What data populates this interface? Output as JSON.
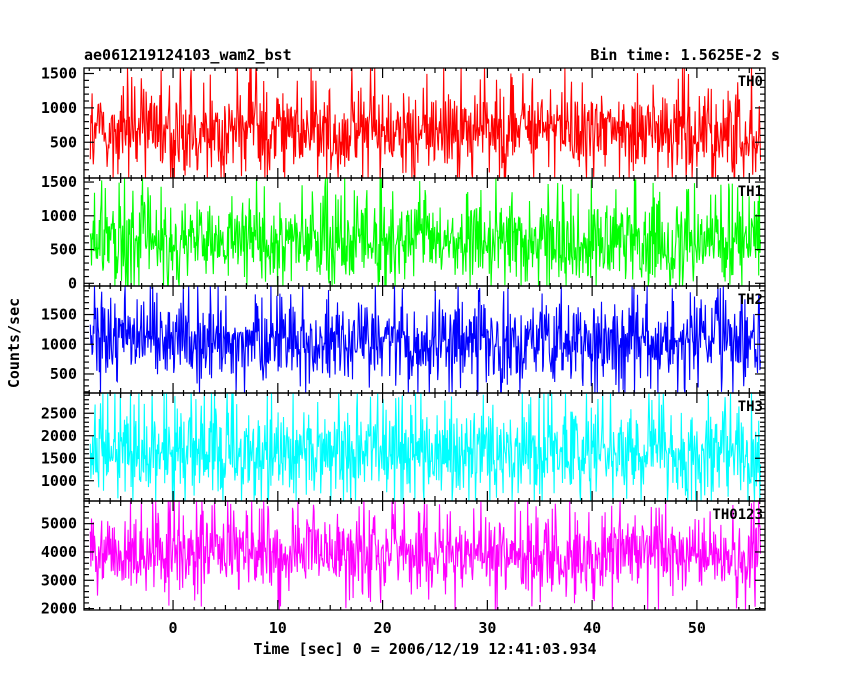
{
  "chart_data": {
    "type": "line",
    "title": "ae061219124103_wam2_bst",
    "subtitle": "Bin time: 1.5625E-2 s",
    "xlabel": "Time [sec] 0 = 2006/12/19 12:41:03.934",
    "ylabel": "Counts/sec",
    "xlim": [
      -8.5,
      56.5
    ],
    "data_x_range": [
      -7.9,
      56.1
    ],
    "bin_time_s": 0.015625,
    "x_ticks_major": [
      0,
      10,
      20,
      30,
      40,
      50
    ],
    "x_tick_labels": [
      "0",
      "10",
      "20",
      "30",
      "40",
      "50"
    ],
    "grid": false,
    "panels": [
      {
        "name": "TH0",
        "color": "#ff0000",
        "ylim": [
          -20,
          1580
        ],
        "y_ticks": [
          500,
          1000,
          1500
        ],
        "y_tick_labels": [
          "500",
          "1000",
          "1500"
        ],
        "typical_range": [
          280,
          1400
        ],
        "mean": 670
      },
      {
        "name": "TH1",
        "color": "#00ff00",
        "ylim": [
          -40,
          1560
        ],
        "y_ticks": [
          0,
          500,
          1000,
          1500
        ],
        "y_tick_labels": [
          "0",
          "500",
          "1000",
          "1500"
        ],
        "typical_range": [
          120,
          1350
        ],
        "mean": 620
      },
      {
        "name": "TH2",
        "color": "#0000ff",
        "ylim": [
          180,
          1980
        ],
        "y_ticks": [
          500,
          1000,
          1500
        ],
        "y_tick_labels": [
          "500",
          "1000",
          "1500"
        ],
        "typical_range": [
          330,
          1850
        ],
        "mean": 1060
      },
      {
        "name": "TH3",
        "color": "#00ffff",
        "ylim": [
          550,
          2950
        ],
        "y_ticks": [
          1000,
          1500,
          2000,
          2500
        ],
        "y_tick_labels": [
          "1000",
          "1500",
          "2000",
          "2500"
        ],
        "typical_range": [
          780,
          2850
        ],
        "mean": 1650
      },
      {
        "name": "TH0123",
        "color": "#ff00ff",
        "ylim": [
          1950,
          5800
        ],
        "y_ticks": [
          2000,
          3000,
          4000,
          5000
        ],
        "y_tick_labels": [
          "2000",
          "3000",
          "4000",
          "5000"
        ],
        "typical_range": [
          2300,
          5500
        ],
        "mean": 3900
      }
    ]
  }
}
